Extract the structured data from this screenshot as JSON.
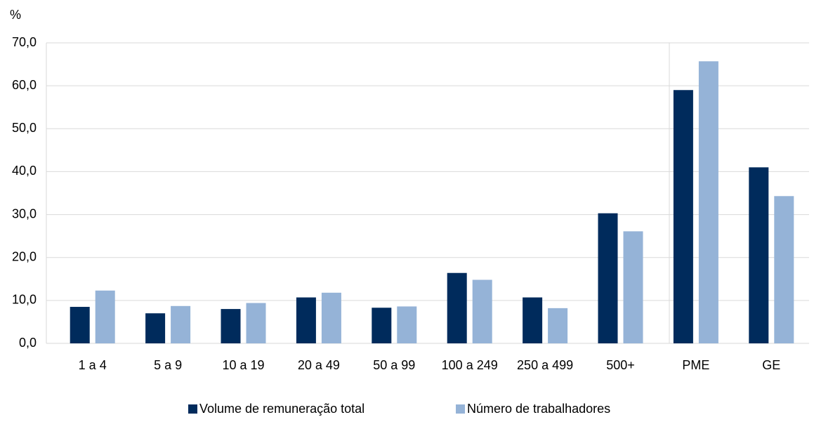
{
  "chart_data": {
    "type": "bar",
    "y_axis_label": "%",
    "categories": [
      "1 a 4",
      "5 a 9",
      "10 a 19",
      "20 a 49",
      "50 a 99",
      "100 a 249",
      "250 a 499",
      "500+",
      "PME",
      "GE"
    ],
    "series": [
      {
        "name": "Volume de remuneração total",
        "color": "#002b5c",
        "values": [
          8.5,
          7.0,
          8.0,
          10.7,
          8.3,
          16.4,
          10.7,
          30.3,
          59.0,
          41.0
        ]
      },
      {
        "name": "Número de trabalhadores",
        "color": "#95b3d7",
        "values": [
          12.3,
          8.7,
          9.4,
          11.8,
          8.6,
          14.8,
          8.2,
          26.1,
          65.7,
          34.3
        ]
      }
    ],
    "ylim": [
      0,
      70
    ],
    "yticks": [
      {
        "value": 0,
        "label": "0,0"
      },
      {
        "value": 10,
        "label": "10,0"
      },
      {
        "value": 20,
        "label": "20,0"
      },
      {
        "value": 30,
        "label": "30,0"
      },
      {
        "value": 40,
        "label": "40,0"
      },
      {
        "value": 50,
        "label": "50,0"
      },
      {
        "value": 60,
        "label": "60,0"
      },
      {
        "value": 70,
        "label": "70,0"
      }
    ],
    "grid": true,
    "legend": "bottom"
  }
}
